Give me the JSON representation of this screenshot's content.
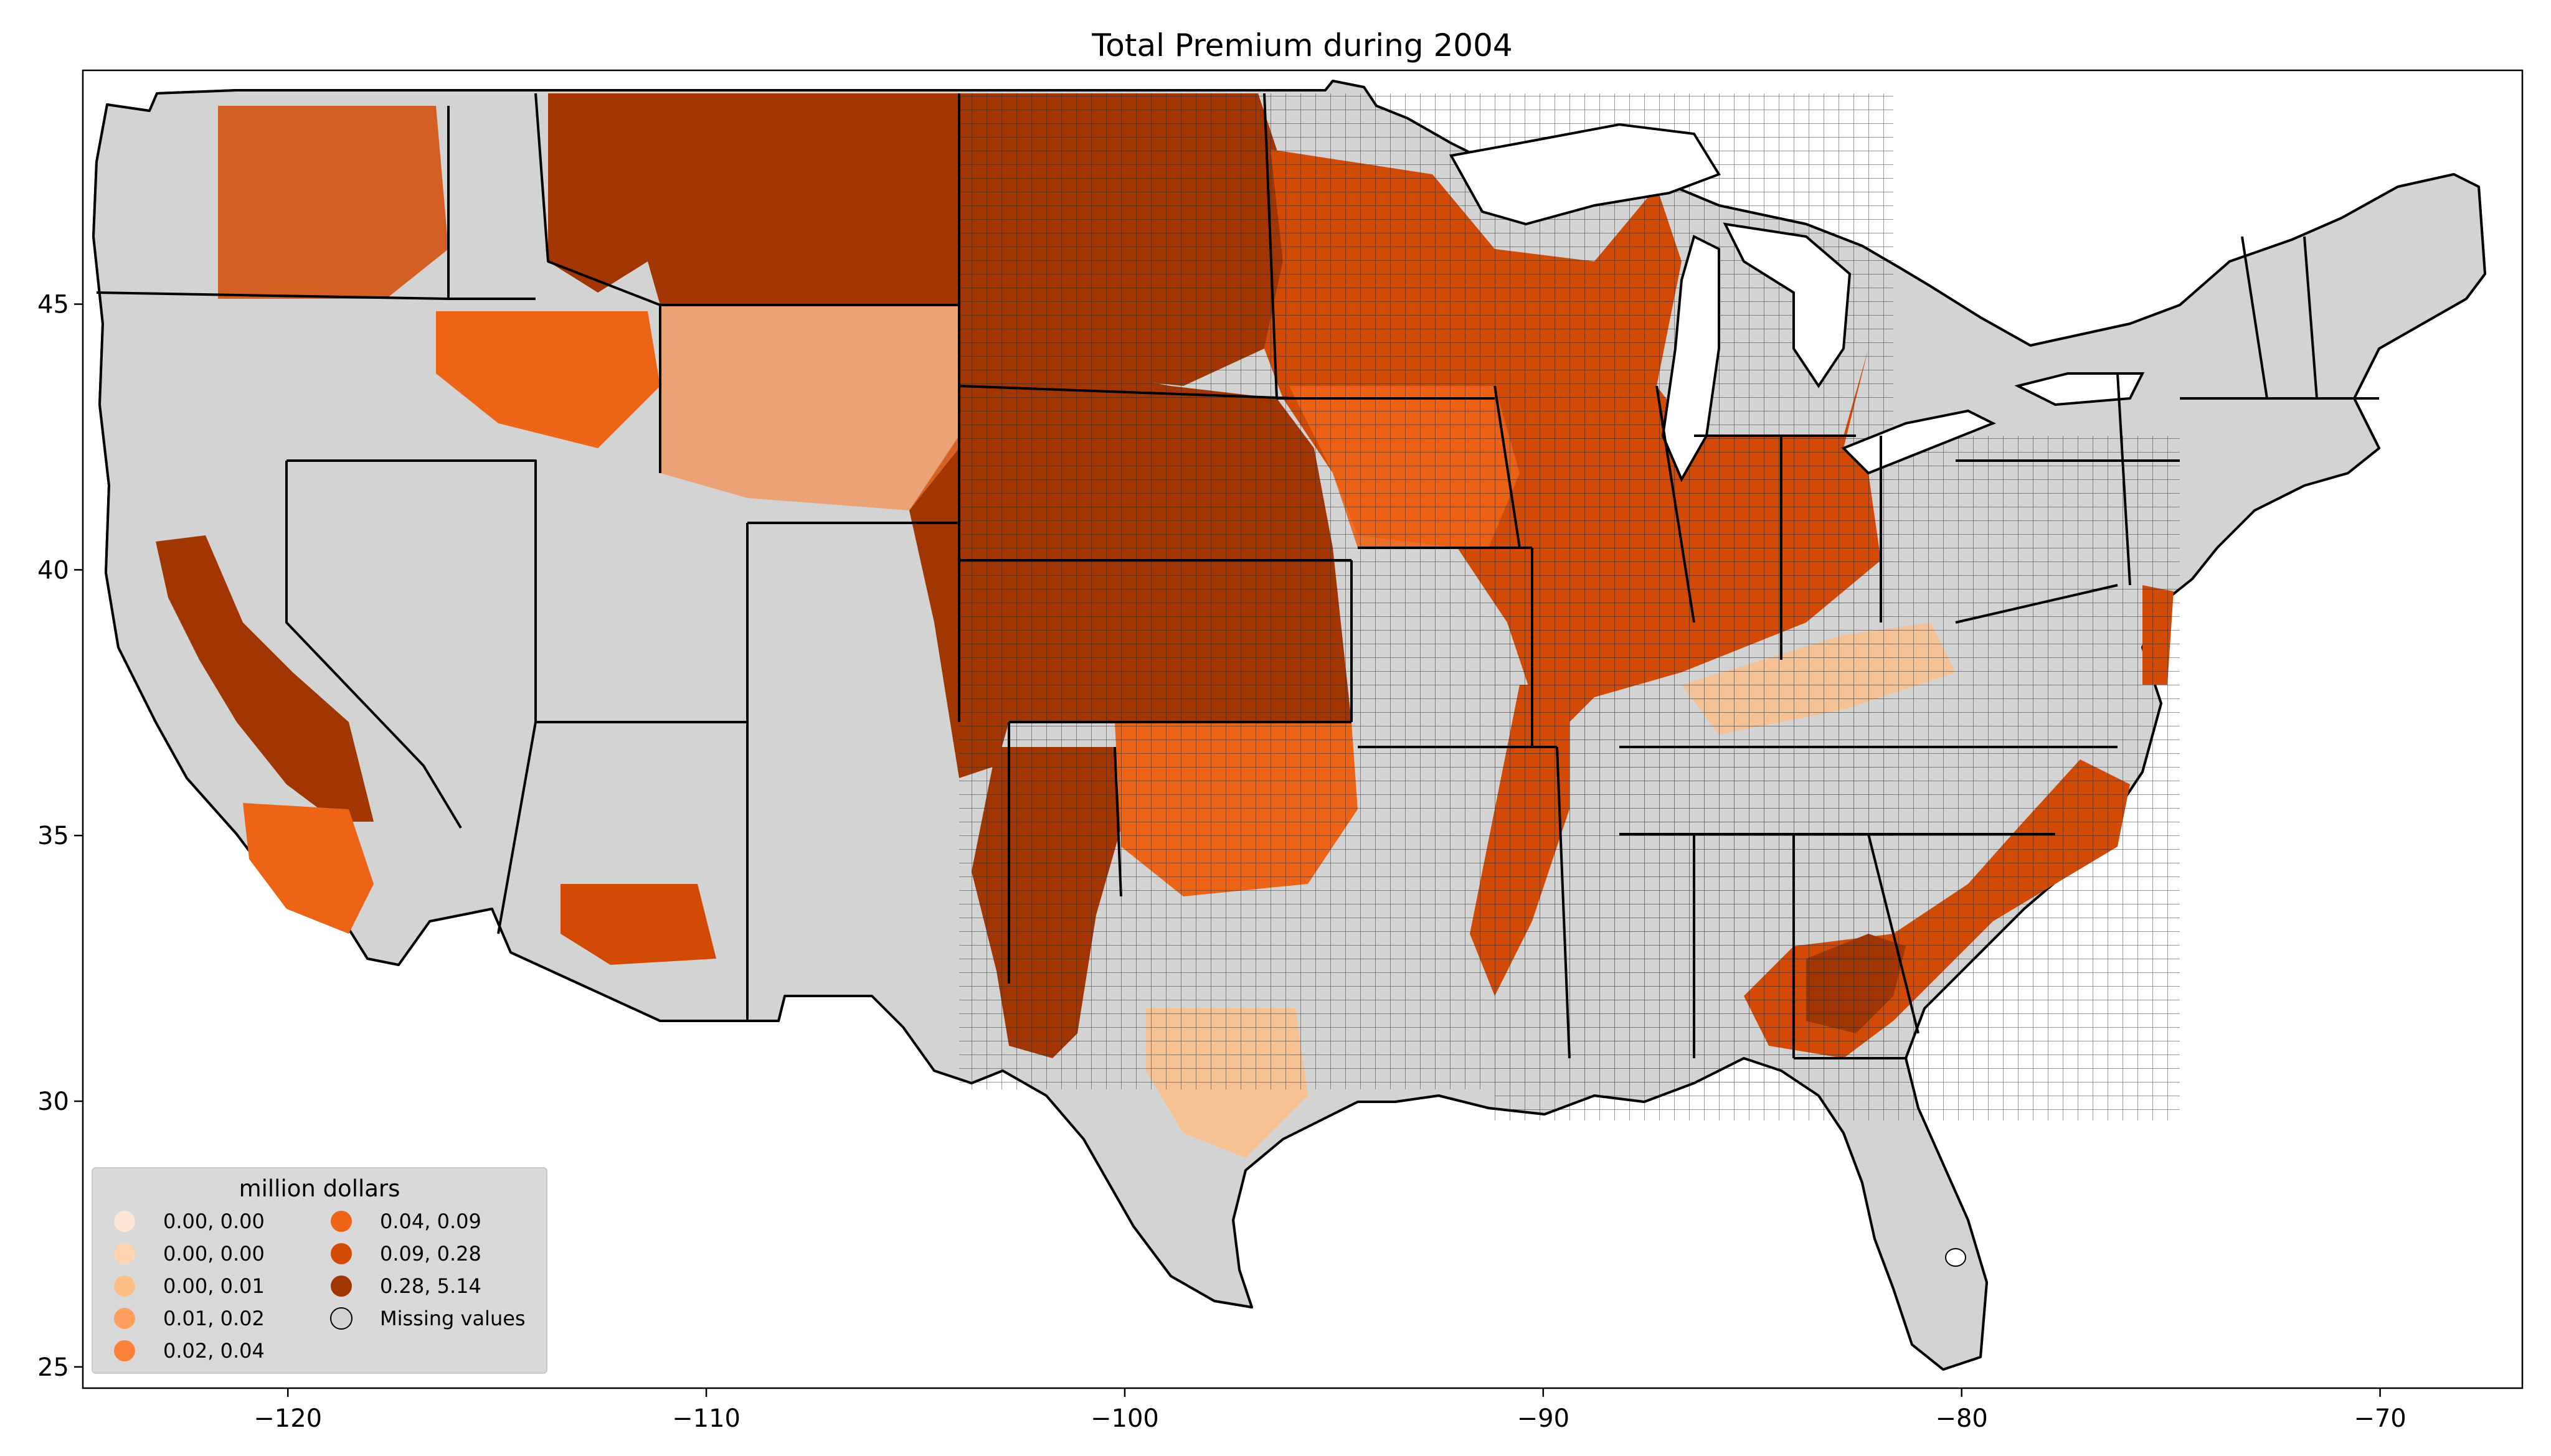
{
  "title": "Total  Premium during 2004",
  "x_axis": {
    "ticks": [
      {
        "value": -120,
        "label": "−120"
      },
      {
        "value": -110,
        "label": "−110"
      },
      {
        "value": -100,
        "label": "−100"
      },
      {
        "value": -90,
        "label": "−90"
      },
      {
        "value": -80,
        "label": "−80"
      },
      {
        "value": -70,
        "label": "−70"
      }
    ],
    "range": [
      -124.9,
      -66.6
    ]
  },
  "y_axis": {
    "ticks": [
      {
        "value": 25,
        "label": "25"
      },
      {
        "value": 30,
        "label": "30"
      },
      {
        "value": 35,
        "label": "35"
      },
      {
        "value": 40,
        "label": "40"
      },
      {
        "value": 45,
        "label": "45"
      }
    ],
    "range": [
      24.6,
      49.4
    ]
  },
  "legend": {
    "title": "million dollars",
    "placement": "lower-left",
    "entries": [
      {
        "label": "0.00, 0.00",
        "color": "#fee6d5"
      },
      {
        "label": "0.00, 0.00",
        "color": "#fdd3b0"
      },
      {
        "label": "0.00, 0.01",
        "color": "#fdbe86"
      },
      {
        "label": "0.01, 0.02",
        "color": "#fda05f"
      },
      {
        "label": "0.02, 0.04",
        "color": "#fb8138"
      },
      {
        "label": "0.04, 0.09",
        "color": "#ee6416"
      },
      {
        "label": "0.09, 0.28",
        "color": "#d34a05"
      },
      {
        "label": "0.28, 5.14",
        "color": "#a23603"
      },
      {
        "label": "Missing values",
        "color": "#d3d3d3"
      }
    ]
  },
  "colors": {
    "missing": "#d3d3d3",
    "border": "#000000",
    "legend_bg": "#d9d9d9"
  },
  "regions": [
    {
      "name": "northern-plains",
      "class": 7,
      "lon": [
        -113,
        -96.5
      ],
      "lat": [
        44.5,
        49
      ]
    },
    {
      "name": "central-plains",
      "class": 7,
      "lon": [
        -104,
        -97.5
      ],
      "lat": [
        36.5,
        44.5
      ]
    },
    {
      "name": "southern-plains",
      "class": 7,
      "lon": [
        -103,
        -99.5
      ],
      "lat": [
        32,
        37
      ]
    },
    {
      "name": "corn-belt",
      "class": 5,
      "lon": [
        -97.5,
        -84
      ],
      "lat": [
        38.5,
        44.5
      ]
    },
    {
      "name": "georgia-carolinas",
      "class": 6,
      "lon": [
        -86,
        -79
      ],
      "lat": [
        31,
        35.5
      ]
    },
    {
      "name": "california-central-valley",
      "class": 7,
      "lon": [
        -122.5,
        -118.5
      ],
      "lat": [
        34.8,
        40
      ]
    }
  ]
}
